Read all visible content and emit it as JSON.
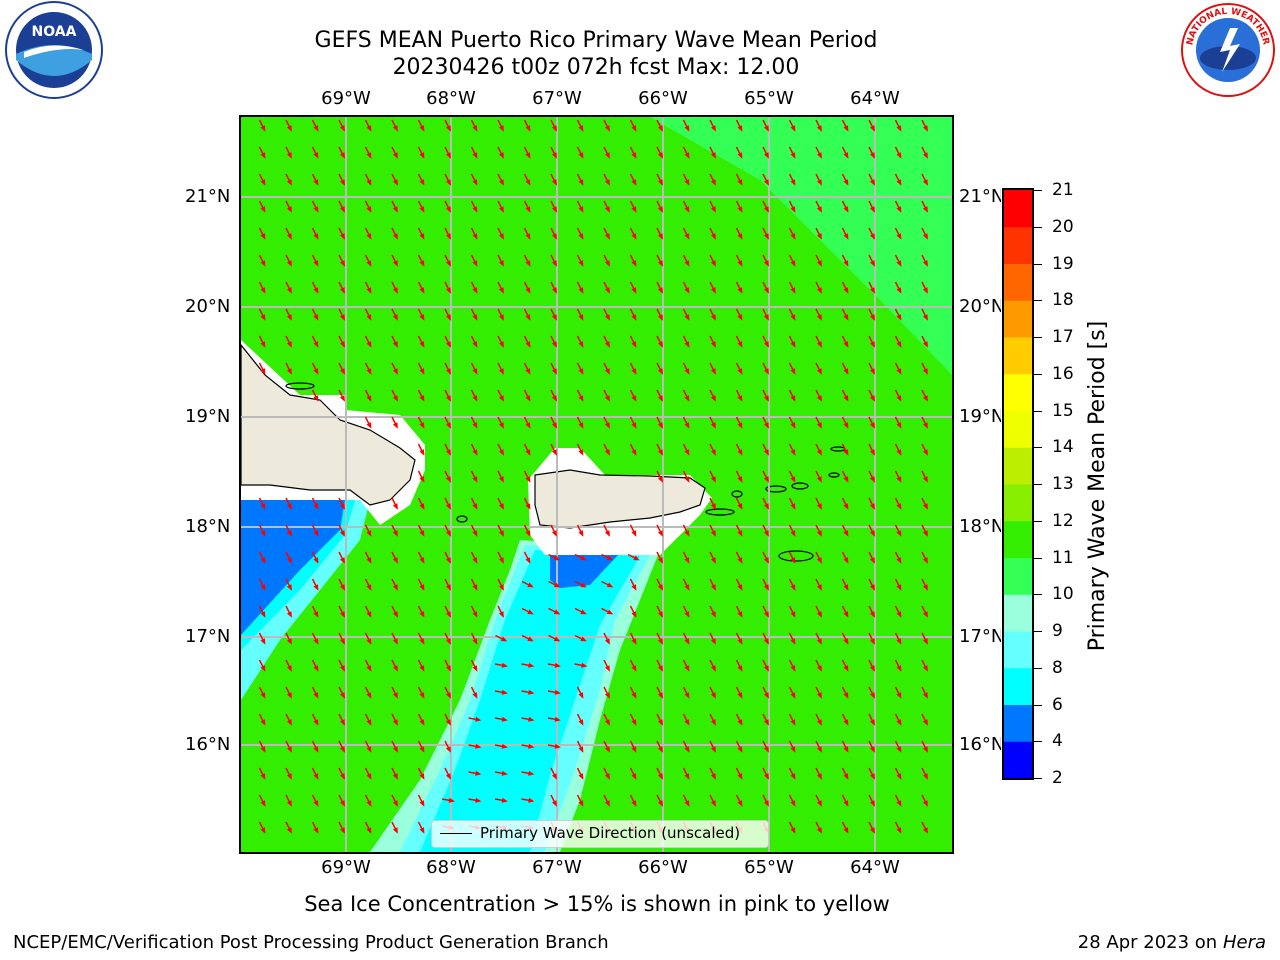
{
  "header": {
    "title_line1": "GEFS MEAN Puerto Rico Primary Wave Mean Period",
    "title_line2": "20230426 t00z 072h fcst   Max: 12.00"
  },
  "logos": {
    "left": {
      "text": "NOAA",
      "icon": "noaa-logo-icon"
    },
    "right": {
      "text": "NATIONAL WEATHER SERVICE",
      "icon": "nws-logo-icon"
    }
  },
  "map": {
    "lon_labels": [
      "69°W",
      "68°W",
      "67°W",
      "66°W",
      "65°W",
      "64°W"
    ],
    "lat_labels": [
      "21°N",
      "20°N",
      "19°N",
      "18°N",
      "17°N",
      "16°N"
    ],
    "legend_label": "Primary Wave Direction (unscaled)",
    "arrow_color": "#ff0000",
    "colors": {
      "ocean_main": "#33ee00",
      "ocean_light": "#33ff55",
      "shallow_cyan": "#00ffff",
      "pale_cyan": "#66ffff",
      "pale": "#99ffdd",
      "blue": "#0077ff",
      "land": "#eeeadb",
      "grid": "#bbbbbb"
    }
  },
  "colorbar": {
    "ticks": [
      "21",
      "20",
      "19",
      "18",
      "17",
      "16",
      "15",
      "14",
      "13",
      "12",
      "11",
      "10",
      "9",
      "8",
      "6",
      "4",
      "2"
    ],
    "colors": [
      "#0000ff",
      "#0077ff",
      "#00ffff",
      "#66ffff",
      "#99ffdd",
      "#33ff55",
      "#33ee00",
      "#88ee00",
      "#bbee00",
      "#eeff00",
      "#ffff00",
      "#ffcc00",
      "#ff9900",
      "#ff6600",
      "#ff3300",
      "#ff0000"
    ],
    "label": "Primary Wave Mean Period [s]"
  },
  "footer": {
    "note": "Sea Ice Concentration > 15% is shown in pink to yellow",
    "left": "NCEP/EMC/Verification Post Processing Product Generation Branch",
    "right_prefix": "28 Apr 2023 on ",
    "right_host": "Hera"
  }
}
